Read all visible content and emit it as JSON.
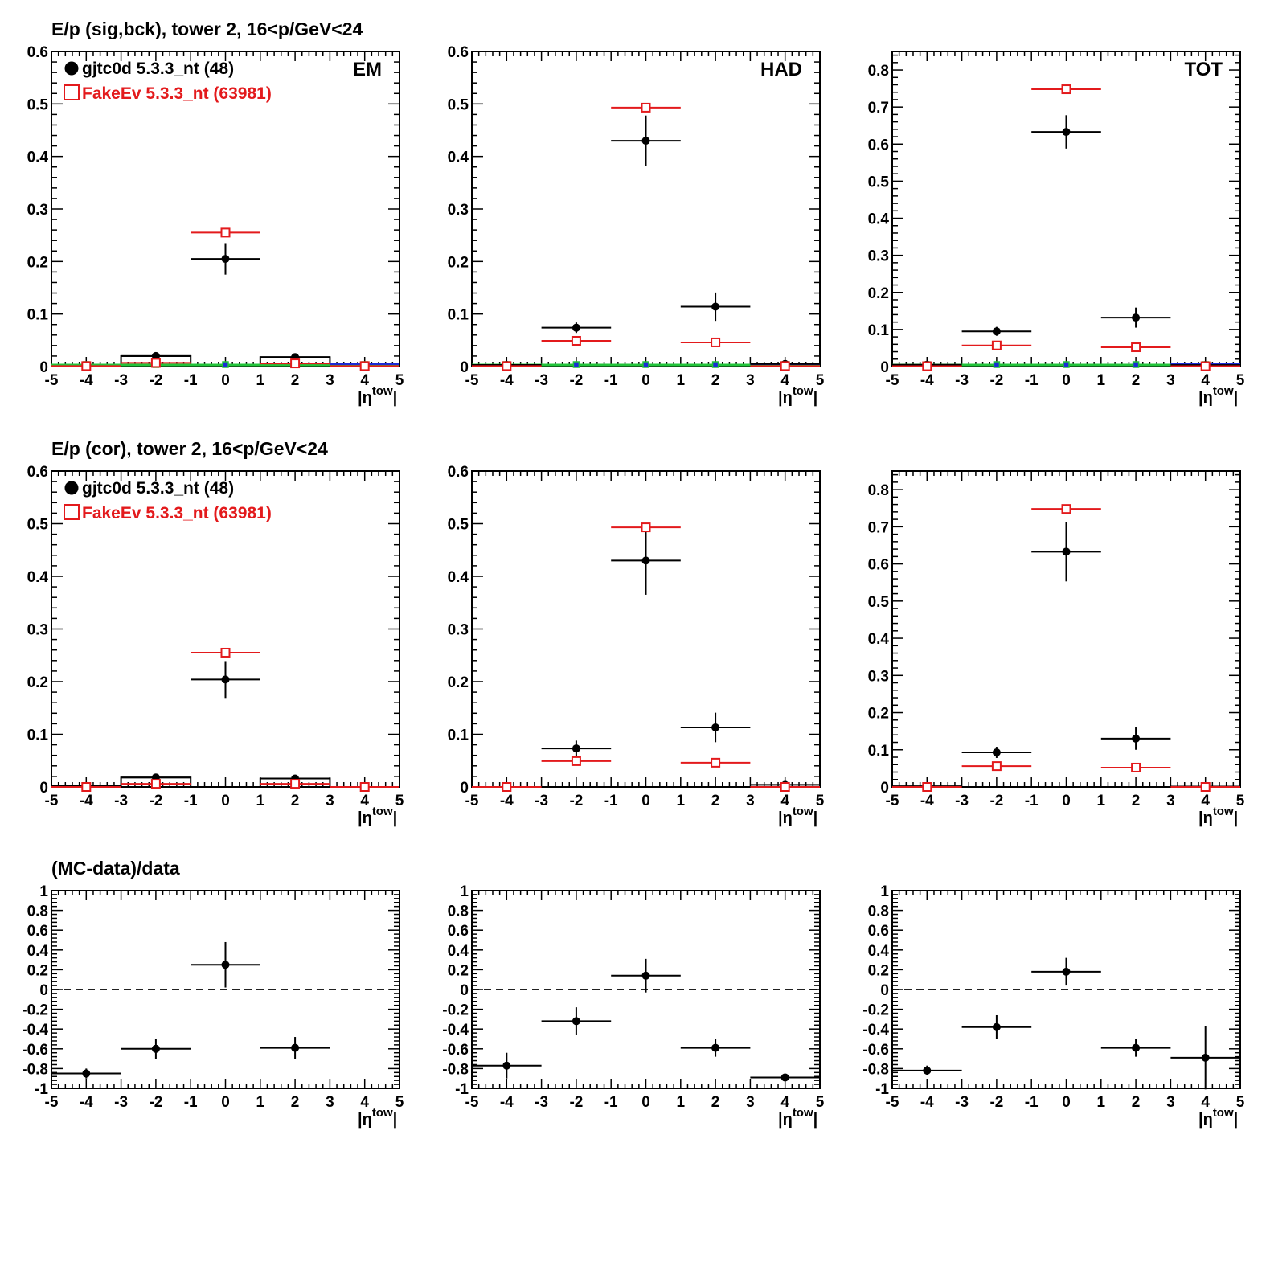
{
  "row_titles": {
    "sigbck": "E/p (sig,bck), tower 2, 16<p/GeV<24",
    "cor": "E/p (cor), tower 2, 16<p/GeV<24",
    "ratio": "(MC-data)/data"
  },
  "legend": {
    "data": "gjtc0d 5.3.3_nt (48)",
    "mc": "FakeEv 5.3.3_nt (63981)"
  },
  "panel_labels": {
    "em": "EM",
    "had": "HAD",
    "tot": "TOT"
  },
  "axis": {
    "xlabel": "|η",
    "xlabel_sup": "tow",
    "xlabel_end": "|"
  },
  "colors": {
    "data": "#000000",
    "mc": "#e31a1c",
    "green": "#22c43a",
    "blue": "#1a2bd6",
    "zero_line": "#000000"
  },
  "chart_data": [
    {
      "type": "scatter",
      "row": "sigbck",
      "panel": "EM",
      "xlim": [
        -5,
        5
      ],
      "ylim": [
        0,
        0.6
      ],
      "yticks": [
        0,
        0.1,
        0.2,
        0.3,
        0.4,
        0.5,
        0.6
      ],
      "xticks": [
        -5,
        -4,
        -3,
        -2,
        -1,
        0,
        1,
        2,
        3,
        4,
        5
      ],
      "series": [
        {
          "name": "gjtc0d 5.3.3_nt (48)",
          "style": "data",
          "points": [
            {
              "x": -4,
              "y": 0.0,
              "ey": 0.0
            },
            {
              "x": -2,
              "y": 0.02,
              "ey": 0.004
            },
            {
              "x": 0,
              "y": 0.205,
              "ey": 0.03
            },
            {
              "x": 2,
              "y": 0.018,
              "ey": 0.004
            },
            {
              "x": 4,
              "y": 0.0,
              "ey": 0.0
            }
          ]
        },
        {
          "name": "FakeEv 5.3.3_nt (63981)",
          "style": "mc",
          "points": [
            {
              "x": -4,
              "y": 0.001
            },
            {
              "x": -2,
              "y": 0.007
            },
            {
              "x": 0,
              "y": 0.255
            },
            {
              "x": 2,
              "y": 0.006
            },
            {
              "x": 4,
              "y": 0.001
            }
          ]
        }
      ],
      "background_boxes": [
        {
          "x0": -3,
          "x1": -1,
          "y": 0.02
        },
        {
          "x0": 1,
          "x1": 3,
          "y": 0.018
        }
      ],
      "baseline_lines": true
    },
    {
      "type": "scatter",
      "row": "sigbck",
      "panel": "HAD",
      "xlim": [
        -5,
        5
      ],
      "ylim": [
        0,
        0.6
      ],
      "yticks": [
        0,
        0.1,
        0.2,
        0.3,
        0.4,
        0.5,
        0.6
      ],
      "xticks": [
        -5,
        -4,
        -3,
        -2,
        -1,
        0,
        1,
        2,
        3,
        4,
        5
      ],
      "series": [
        {
          "name": "gjtc0d 5.3.3_nt (48)",
          "style": "data",
          "points": [
            {
              "x": -4,
              "y": 0.003,
              "ey": 0.0
            },
            {
              "x": -2,
              "y": 0.074,
              "ey": 0.01
            },
            {
              "x": 0,
              "y": 0.43,
              "ey": 0.048
            },
            {
              "x": 2,
              "y": 0.114,
              "ey": 0.027
            },
            {
              "x": 4,
              "y": 0.005,
              "ey": 0.0
            }
          ]
        },
        {
          "name": "FakeEv 5.3.3_nt (63981)",
          "style": "mc",
          "points": [
            {
              "x": -4,
              "y": 0.001
            },
            {
              "x": -2,
              "y": 0.049
            },
            {
              "x": 0,
              "y": 0.493
            },
            {
              "x": 2,
              "y": 0.046
            },
            {
              "x": 4,
              "y": 0.001
            }
          ]
        }
      ],
      "background_boxes": [],
      "baseline_lines": true
    },
    {
      "type": "scatter",
      "row": "sigbck",
      "panel": "TOT",
      "xlim": [
        -5,
        5
      ],
      "ylim": [
        0,
        0.85
      ],
      "yticks": [
        0,
        0.1,
        0.2,
        0.3,
        0.4,
        0.5,
        0.6,
        0.7,
        0.8
      ],
      "xticks": [
        -5,
        -4,
        -3,
        -2,
        -1,
        0,
        1,
        2,
        3,
        4,
        5
      ],
      "series": [
        {
          "name": "gjtc0d 5.3.3_nt (48)",
          "style": "data",
          "points": [
            {
              "x": -4,
              "y": 0.005,
              "ey": 0.0
            },
            {
              "x": -2,
              "y": 0.095,
              "ey": 0.012
            },
            {
              "x": 0,
              "y": 0.633,
              "ey": 0.045
            },
            {
              "x": 2,
              "y": 0.132,
              "ey": 0.027
            },
            {
              "x": 4,
              "y": 0.004,
              "ey": 0.0
            }
          ]
        },
        {
          "name": "FakeEv 5.3.3_nt (63981)",
          "style": "mc",
          "points": [
            {
              "x": -4,
              "y": 0.001
            },
            {
              "x": -2,
              "y": 0.057
            },
            {
              "x": 0,
              "y": 0.748
            },
            {
              "x": 2,
              "y": 0.052
            },
            {
              "x": 4,
              "y": 0.001
            }
          ]
        }
      ],
      "background_boxes": [],
      "baseline_lines": true
    },
    {
      "type": "scatter",
      "row": "cor",
      "panel": "EM",
      "xlim": [
        -5,
        5
      ],
      "ylim": [
        0,
        0.6
      ],
      "yticks": [
        0,
        0.1,
        0.2,
        0.3,
        0.4,
        0.5,
        0.6
      ],
      "xticks": [
        -5,
        -4,
        -3,
        -2,
        -1,
        0,
        1,
        2,
        3,
        4,
        5
      ],
      "series": [
        {
          "name": "gjtc0d 5.3.3_nt (48)",
          "style": "data",
          "points": [
            {
              "x": -4,
              "y": 0.002,
              "ey": 0.0
            },
            {
              "x": -2,
              "y": 0.018,
              "ey": 0.003
            },
            {
              "x": 0,
              "y": 0.204,
              "ey": 0.035
            },
            {
              "x": 2,
              "y": 0.016,
              "ey": 0.003
            },
            {
              "x": 4,
              "y": 0.0,
              "ey": 0.0
            }
          ]
        },
        {
          "name": "FakeEv 5.3.3_nt (63981)",
          "style": "mc",
          "points": [
            {
              "x": -4,
              "y": 0.0
            },
            {
              "x": -2,
              "y": 0.006
            },
            {
              "x": 0,
              "y": 0.255
            },
            {
              "x": 2,
              "y": 0.006
            },
            {
              "x": 4,
              "y": 0.0
            }
          ]
        }
      ],
      "background_boxes": [
        {
          "x0": -3,
          "x1": -1,
          "y": 0.018
        },
        {
          "x0": 1,
          "x1": 3,
          "y": 0.016
        }
      ],
      "baseline_lines": false
    },
    {
      "type": "scatter",
      "row": "cor",
      "panel": "HAD",
      "xlim": [
        -5,
        5
      ],
      "ylim": [
        0,
        0.6
      ],
      "yticks": [
        0,
        0.1,
        0.2,
        0.3,
        0.4,
        0.5,
        0.6
      ],
      "xticks": [
        -5,
        -4,
        -3,
        -2,
        -1,
        0,
        1,
        2,
        3,
        4,
        5
      ],
      "series": [
        {
          "name": "gjtc0d 5.3.3_nt (48)",
          "style": "data",
          "points": [
            {
              "x": -4,
              "y": 0.0,
              "ey": 0.0
            },
            {
              "x": -2,
              "y": 0.073,
              "ey": 0.015
            },
            {
              "x": 0,
              "y": 0.43,
              "ey": 0.065
            },
            {
              "x": 2,
              "y": 0.113,
              "ey": 0.028
            },
            {
              "x": 4,
              "y": 0.004,
              "ey": 0.0
            }
          ]
        },
        {
          "name": "FakeEv 5.3.3_nt (63981)",
          "style": "mc",
          "points": [
            {
              "x": -4,
              "y": 0.0
            },
            {
              "x": -2,
              "y": 0.049
            },
            {
              "x": 0,
              "y": 0.493
            },
            {
              "x": 2,
              "y": 0.046
            },
            {
              "x": 4,
              "y": 0.0
            }
          ]
        }
      ],
      "background_boxes": [],
      "baseline_lines": false
    },
    {
      "type": "scatter",
      "row": "cor",
      "panel": "TOT",
      "xlim": [
        -5,
        5
      ],
      "ylim": [
        0,
        0.85
      ],
      "yticks": [
        0,
        0.1,
        0.2,
        0.3,
        0.4,
        0.5,
        0.6,
        0.7,
        0.8
      ],
      "xticks": [
        -5,
        -4,
        -3,
        -2,
        -1,
        0,
        1,
        2,
        3,
        4,
        5
      ],
      "series": [
        {
          "name": "gjtc0d 5.3.3_nt (48)",
          "style": "data",
          "points": [
            {
              "x": -4,
              "y": 0.002,
              "ey": 0.0
            },
            {
              "x": -2,
              "y": 0.093,
              "ey": 0.015
            },
            {
              "x": 0,
              "y": 0.633,
              "ey": 0.08
            },
            {
              "x": 2,
              "y": 0.13,
              "ey": 0.03
            },
            {
              "x": 4,
              "y": 0.001,
              "ey": 0.0
            }
          ]
        },
        {
          "name": "FakeEv 5.3.3_nt (63981)",
          "style": "mc",
          "points": [
            {
              "x": -4,
              "y": 0.0
            },
            {
              "x": -2,
              "y": 0.056
            },
            {
              "x": 0,
              "y": 0.748
            },
            {
              "x": 2,
              "y": 0.052
            },
            {
              "x": 4,
              "y": 0.0
            }
          ]
        }
      ],
      "background_boxes": [],
      "baseline_lines": false
    },
    {
      "type": "scatter",
      "row": "ratio",
      "panel": "EM",
      "xlim": [
        -5,
        5
      ],
      "ylim": [
        -1,
        1
      ],
      "yticks": [
        -1,
        -0.8,
        -0.6,
        -0.4,
        -0.2,
        0,
        0.2,
        0.4,
        0.6,
        0.8,
        1
      ],
      "xticks": [
        -5,
        -4,
        -3,
        -2,
        -1,
        0,
        1,
        2,
        3,
        4,
        5
      ],
      "series": [
        {
          "name": "",
          "style": "data",
          "points": [
            {
              "x": -4,
              "y": -0.85,
              "ey": 0.05
            },
            {
              "x": -2,
              "y": -0.6,
              "ey": 0.1
            },
            {
              "x": 0,
              "y": 0.25,
              "ey": 0.23
            },
            {
              "x": 2,
              "y": -0.59,
              "ey": 0.11
            }
          ]
        }
      ],
      "background_boxes": [],
      "baseline_lines": false
    },
    {
      "type": "scatter",
      "row": "ratio",
      "panel": "HAD",
      "xlim": [
        -5,
        5
      ],
      "ylim": [
        -1,
        1
      ],
      "yticks": [
        -1,
        -0.8,
        -0.6,
        -0.4,
        -0.2,
        0,
        0.2,
        0.4,
        0.6,
        0.8,
        1
      ],
      "xticks": [
        -5,
        -4,
        -3,
        -2,
        -1,
        0,
        1,
        2,
        3,
        4,
        5
      ],
      "series": [
        {
          "name": "",
          "style": "data",
          "points": [
            {
              "x": -4,
              "y": -0.77,
              "ey": 0.13
            },
            {
              "x": -2,
              "y": -0.32,
              "ey": 0.14
            },
            {
              "x": 0,
              "y": 0.14,
              "ey": 0.17
            },
            {
              "x": 2,
              "y": -0.59,
              "ey": 0.09
            },
            {
              "x": 4,
              "y": -0.89,
              "ey": 0.02
            }
          ]
        }
      ],
      "background_boxes": [],
      "baseline_lines": false
    },
    {
      "type": "scatter",
      "row": "ratio",
      "panel": "TOT",
      "xlim": [
        -5,
        5
      ],
      "ylim": [
        -1,
        1
      ],
      "yticks": [
        -1,
        -0.8,
        -0.6,
        -0.4,
        -0.2,
        0,
        0.2,
        0.4,
        0.6,
        0.8,
        1
      ],
      "xticks": [
        -5,
        -4,
        -3,
        -2,
        -1,
        0,
        1,
        2,
        3,
        4,
        5
      ],
      "series": [
        {
          "name": "",
          "style": "data",
          "points": [
            {
              "x": -4,
              "y": -0.82,
              "ey": 0.05
            },
            {
              "x": -2,
              "y": -0.38,
              "ey": 0.12
            },
            {
              "x": 0,
              "y": 0.18,
              "ey": 0.14
            },
            {
              "x": 2,
              "y": -0.59,
              "ey": 0.09
            },
            {
              "x": 4,
              "y": -0.69,
              "ey": 0.32
            }
          ]
        }
      ],
      "background_boxes": [],
      "baseline_lines": false
    }
  ]
}
